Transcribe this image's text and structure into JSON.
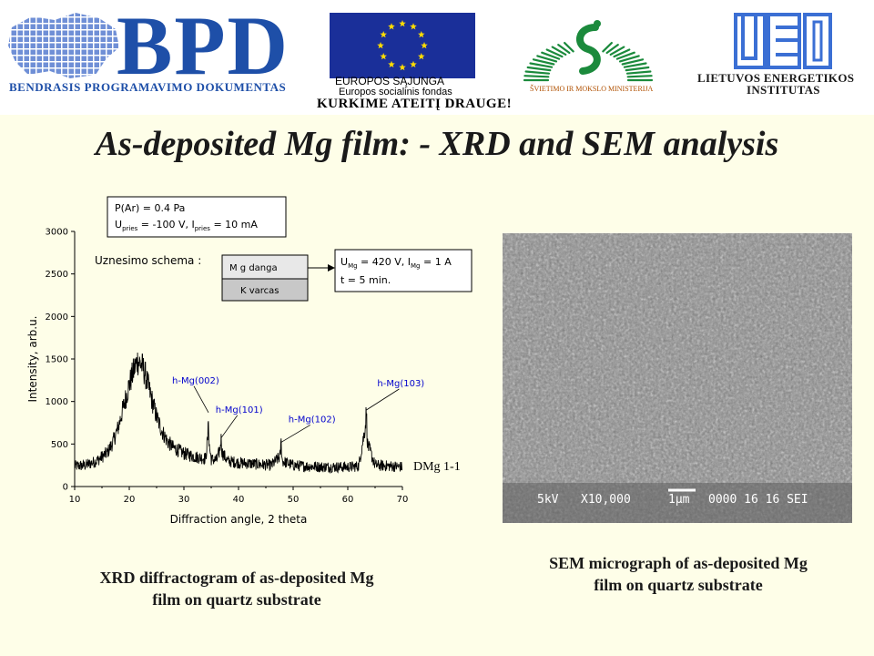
{
  "banner": {
    "bpd_letters": "BPD",
    "bpd_subtitle": "BENDRASIS PROGRAMAVIMO DOKUMENTAS",
    "eu_line1": "EUROPOS SĄJUNGA",
    "eu_line2": "Europos socialinis fondas",
    "slogan": "KURKIME ATEITĮ DRAUGE!",
    "ministry": "ŠVIETIMO IR MOKSLO MINISTERIJA",
    "lei_line1": "LIETUVOS ENERGETIKOS",
    "lei_line2": "INSTITUTAS",
    "colors": {
      "bpd_blue": "#1e4fa8",
      "eu_blue": "#1a2f99",
      "eu_star": "#ffdd00",
      "ministry_green": "#1b8a3c",
      "lei_blue": "#3b6fd4"
    },
    "icons": [
      "lithuania-map-icon",
      "eu-flag-icon",
      "ministry-emblem-icon",
      "lei-logo-icon"
    ]
  },
  "slide_title": "As-deposited Mg film: - XRD and SEM analysis",
  "xrd": {
    "params_line1": "P(Ar) = 0.4 Pa",
    "params_line2_prefix": "U",
    "params_line2_sub": "pries",
    "params_line2_mid": " = -100 V, I",
    "params_line2_sub2": "pries",
    "params_line2_suffix": " = 10 mA",
    "scheme_label": "Uznesimo schema :",
    "layer_top": "M g danga",
    "layer_bottom": "K varcas",
    "cond_line1_a": "U",
    "cond_line1_sub": "Mg",
    "cond_line1_b": " = 420 V, I",
    "cond_line1_sub2": "Mg",
    "cond_line1_c": " = 1 A",
    "cond_line2": "t = 5 min.",
    "sample_label": "DMg 1-1",
    "caption_line1": "XRD diffractogram of as-deposited Mg",
    "caption_line2": "film on quartz substrate"
  },
  "chart_data": {
    "type": "line",
    "xlabel": "Diffraction angle, 2 theta",
    "ylabel": "Intensity, arb.u.",
    "xlim": [
      10,
      70
    ],
    "ylim": [
      0,
      3000
    ],
    "x_ticks": [
      10,
      20,
      30,
      40,
      50,
      60,
      70
    ],
    "y_ticks": [
      0,
      500,
      1000,
      1500,
      2000,
      2500,
      3000
    ],
    "series": [
      {
        "name": "DMg 1-1",
        "x": [
          10,
          12,
          14,
          16,
          17,
          18,
          19,
          20,
          21,
          21.5,
          22,
          22.5,
          23,
          24,
          25,
          26,
          27,
          28,
          30,
          32,
          34,
          34.4,
          34.5,
          34.6,
          35,
          36,
          36.6,
          36.8,
          37,
          38,
          40,
          42,
          44,
          46,
          47.6,
          47.8,
          48,
          50,
          52,
          54,
          56,
          58,
          60,
          62,
          63.2,
          63.4,
          63.6,
          65,
          68,
          70
        ],
        "y": [
          240,
          250,
          300,
          400,
          520,
          700,
          950,
          1200,
          1400,
          1480,
          1450,
          1400,
          1300,
          1050,
          820,
          650,
          530,
          460,
          390,
          350,
          330,
          600,
          870,
          500,
          320,
          310,
          430,
          570,
          400,
          300,
          280,
          270,
          260,
          250,
          350,
          520,
          300,
          250,
          240,
          235,
          230,
          230,
          230,
          240,
          700,
          900,
          500,
          250,
          240,
          230
        ]
      }
    ],
    "annotations": [
      {
        "text": "h-Mg(002)",
        "x": 34.5,
        "y": 870
      },
      {
        "text": "h-Mg(101)",
        "x": 36.8,
        "y": 570
      },
      {
        "text": "h-Mg(102)",
        "x": 47.8,
        "y": 520
      },
      {
        "text": "h-Mg(103)",
        "x": 63.4,
        "y": 900
      }
    ],
    "grid": false,
    "colors": {
      "line": "#000000",
      "annotation": "#0000cc"
    }
  },
  "sem": {
    "info_kv": "5kV",
    "info_mag": "X10,000",
    "info_scale": "1μm",
    "info_id": "0000 16 16 SEI",
    "caption_line1": "SEM micrograph of as-deposited Mg",
    "caption_line2": "film on quartz substrate"
  }
}
